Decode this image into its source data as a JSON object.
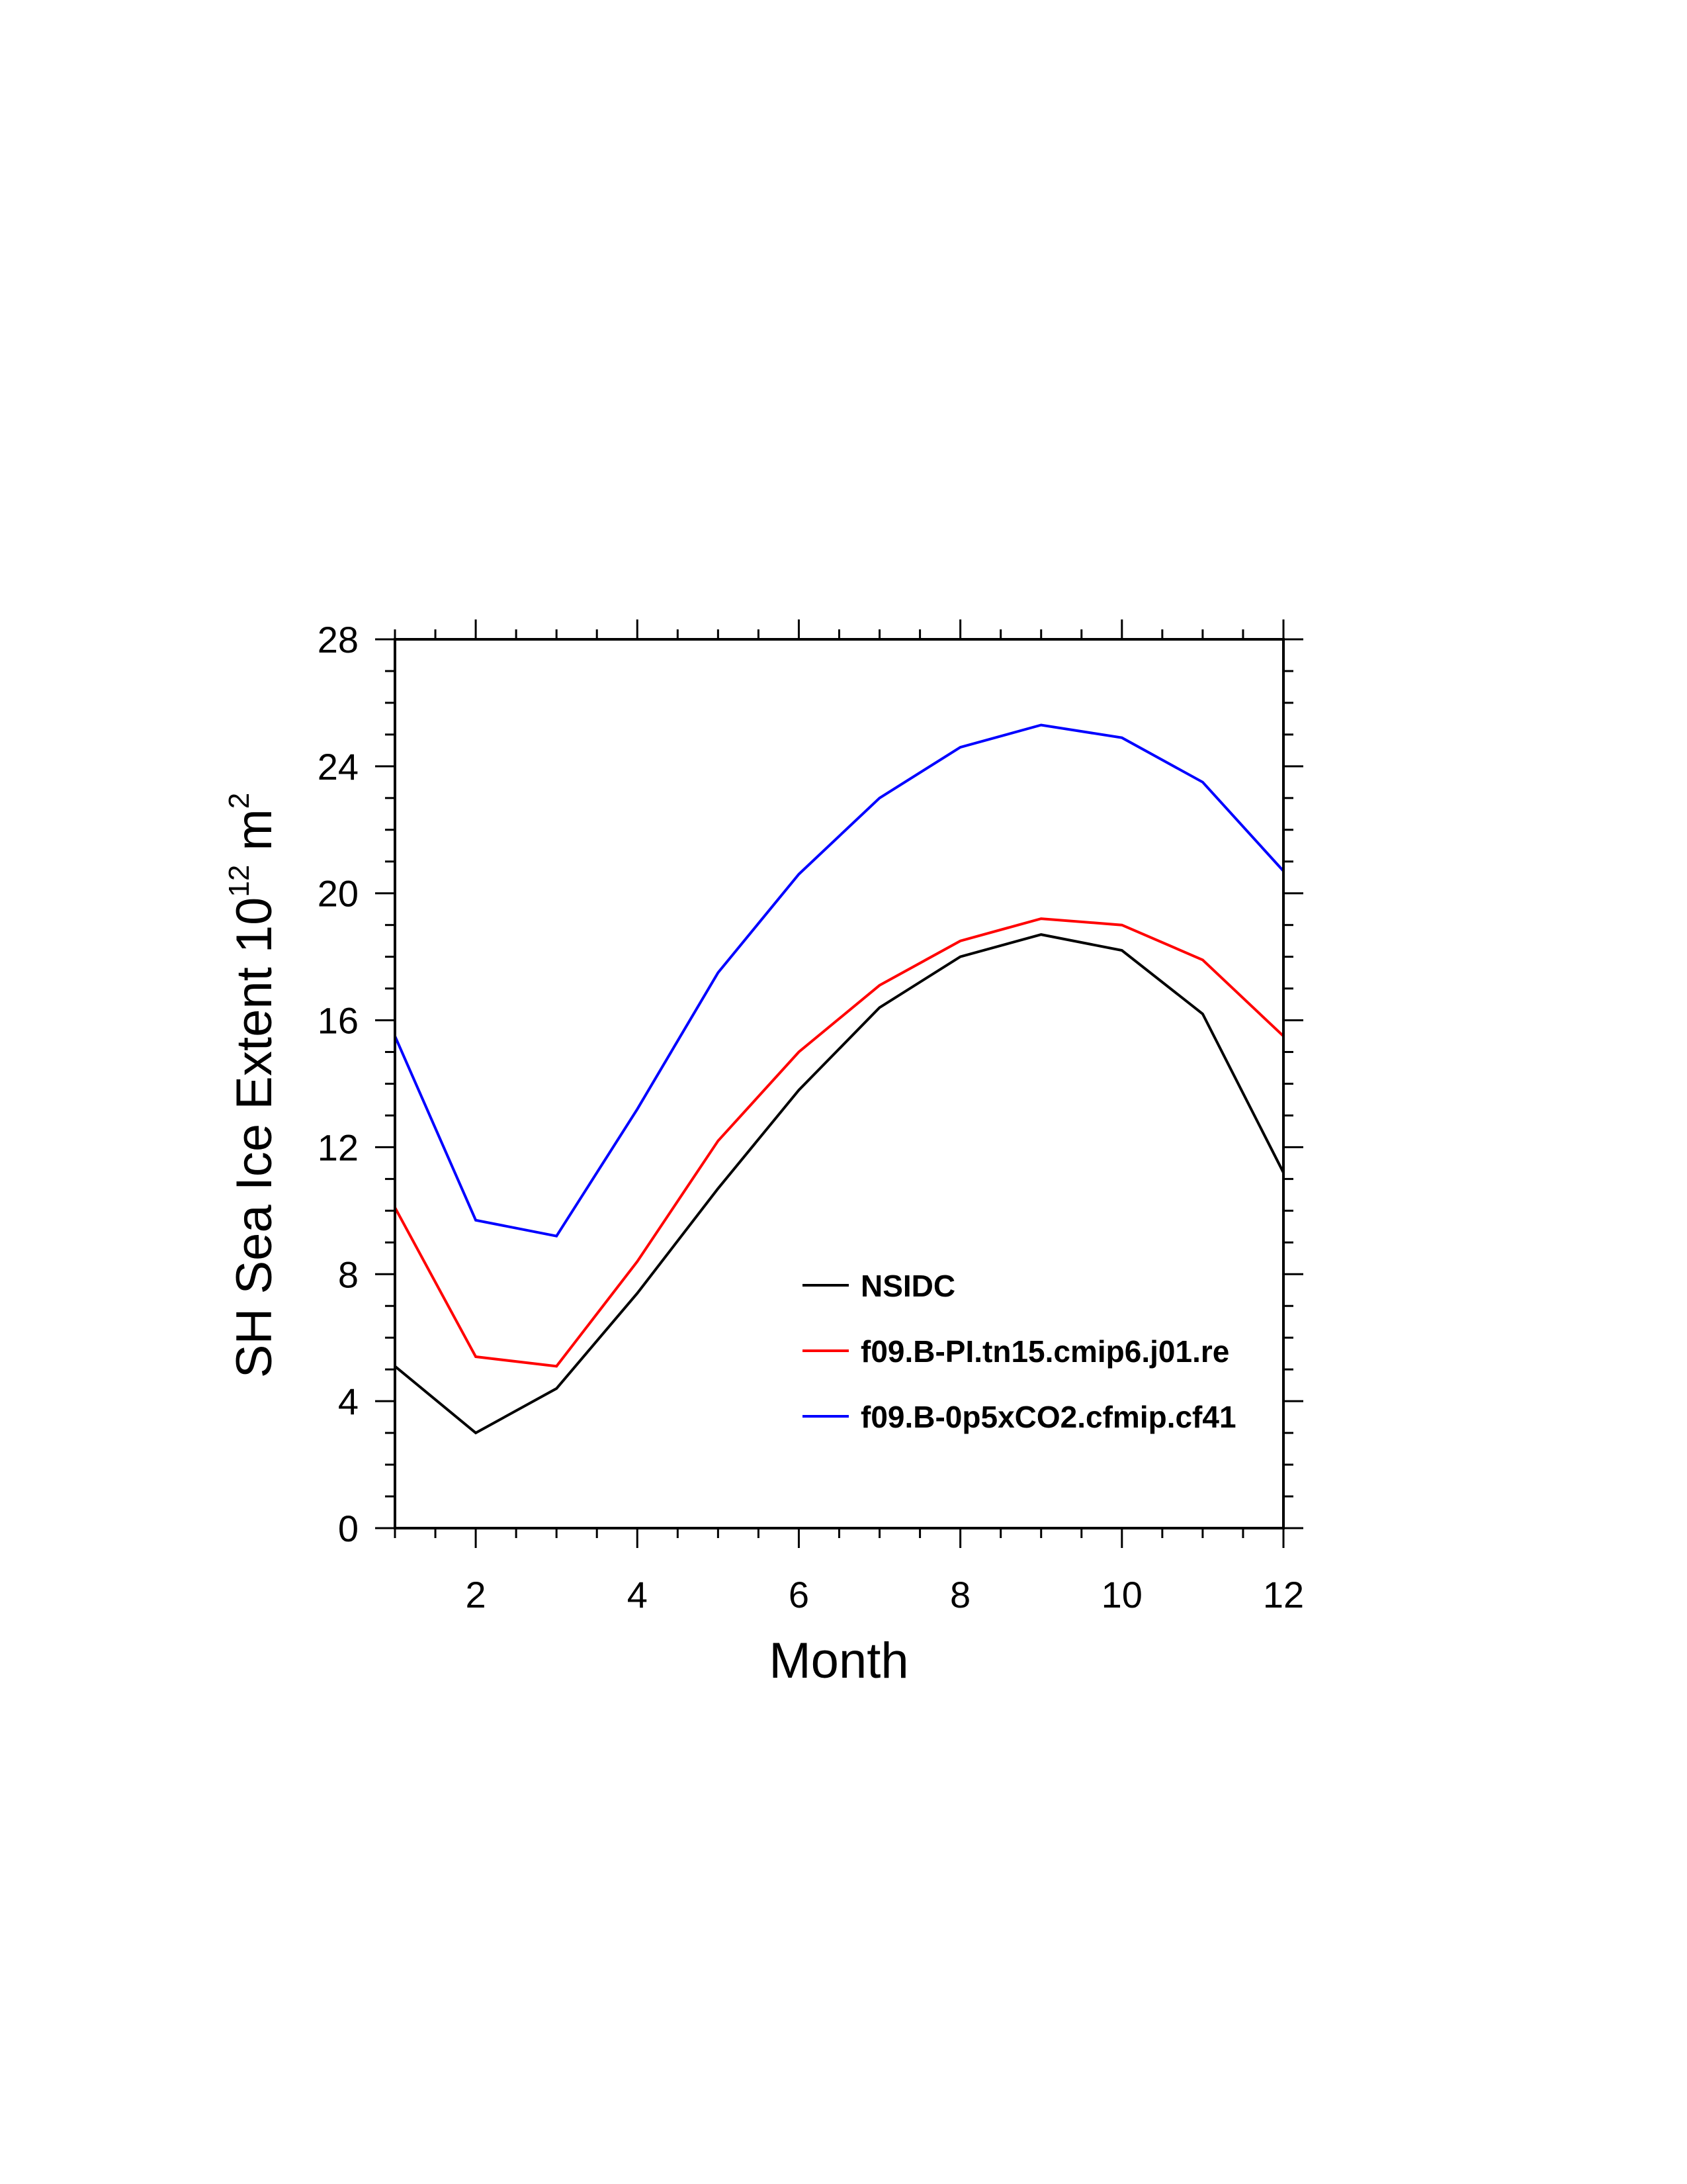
{
  "chart_data": {
    "type": "line",
    "xlabel": "Month",
    "ylabel_main": "SH Sea Ice Extent 10",
    "ylabel_exp": "12",
    "ylabel_unit": " m",
    "ylabel_unit_exp": "2",
    "xlim": [
      1,
      12
    ],
    "ylim": [
      0,
      28
    ],
    "x_ticks": [
      2,
      4,
      6,
      8,
      10,
      12
    ],
    "y_ticks": [
      0,
      4,
      8,
      12,
      16,
      20,
      24,
      28
    ],
    "x": [
      1,
      2,
      3,
      4,
      5,
      6,
      7,
      8,
      9,
      10,
      11,
      12
    ],
    "series": [
      {
        "name": "NSIDC",
        "color": "#000000",
        "values": [
          5.1,
          3.0,
          4.4,
          7.4,
          10.7,
          13.8,
          16.4,
          18.0,
          18.7,
          18.2,
          16.2,
          11.2
        ]
      },
      {
        "name": "f09.B-PI.tn15.cmip6.j01.re",
        "color": "#ff0000",
        "values": [
          10.1,
          5.4,
          5.1,
          8.4,
          12.2,
          15.0,
          17.1,
          18.5,
          19.2,
          19.0,
          17.9,
          15.5
        ]
      },
      {
        "name": "f09.B-0p5xCO2.cfmip.cf41",
        "color": "#0000ff",
        "values": [
          15.5,
          9.7,
          9.2,
          13.2,
          17.5,
          20.6,
          23.0,
          24.6,
          25.3,
          24.9,
          23.5,
          20.7
        ]
      }
    ],
    "legend_position": "lower-right inside",
    "grid": false
  }
}
